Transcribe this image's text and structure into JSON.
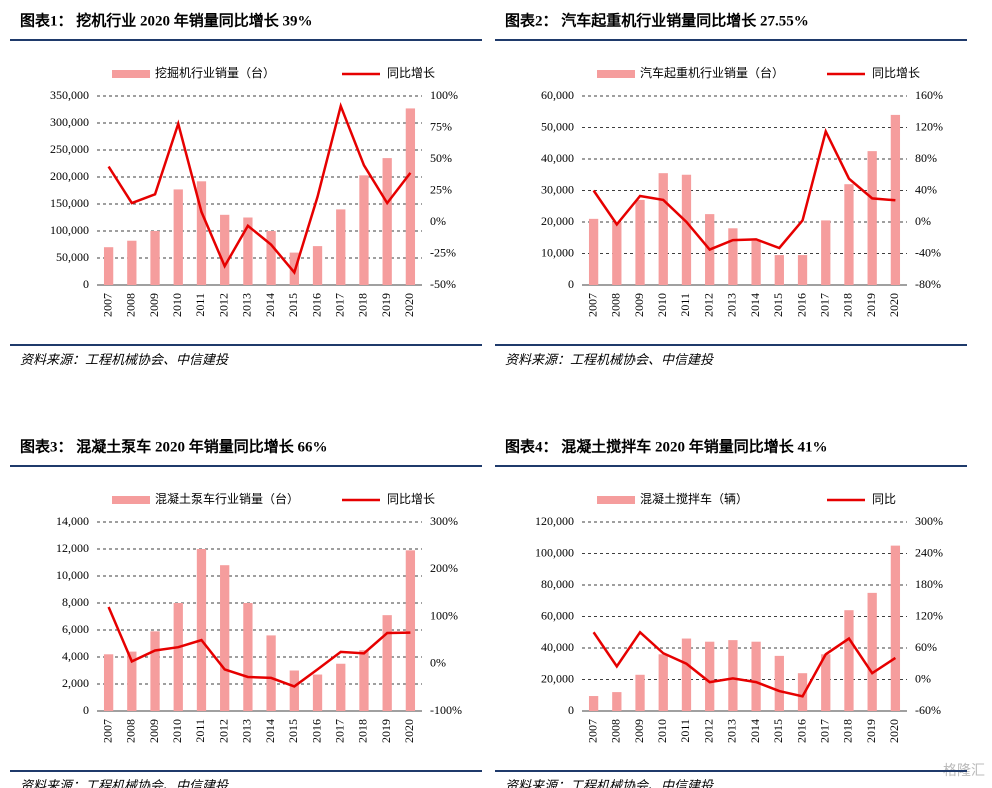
{
  "chart_data": [
    {
      "type": "bar_line",
      "title": "图表1：  挖机行业 2020 年销量同比增长 39%",
      "source": "资料来源：工程机械协会、中信建投",
      "categories": [
        "2007",
        "2008",
        "2009",
        "2010",
        "2011",
        "2012",
        "2013",
        "2014",
        "2015",
        "2016",
        "2017",
        "2018",
        "2019",
        "2020"
      ],
      "series": [
        {
          "name": "挖掘机行业销量（台）",
          "color": "#f59d9d",
          "values": [
            70000,
            82000,
            100000,
            177000,
            192000,
            130000,
            125000,
            100000,
            60000,
            72000,
            140000,
            203000,
            235000,
            327000
          ]
        },
        {
          "name": "同比增长",
          "color": "#e60000",
          "axis": "y2",
          "values": [
            44,
            15,
            22,
            78,
            8,
            -35,
            -3,
            -18,
            -40,
            20,
            92,
            45,
            15,
            39
          ]
        }
      ],
      "ylim": [
        0,
        350000
      ],
      "yticks": [
        0,
        {
          "value": 50000,
          "label": "50,000"
        },
        {
          "value": 100000,
          "label": "100,000"
        },
        {
          "value": 150000,
          "label": "150,000"
        },
        {
          "value": 200000,
          "label": "200,000"
        },
        {
          "value": 250000,
          "label": "250,000"
        },
        {
          "value": 300000,
          "label": "300,000"
        },
        {
          "value": 350000,
          "label": "350,000"
        }
      ],
      "y2lim": [
        -50,
        100
      ],
      "y2ticks": [
        {
          "value": -50,
          "label": "-50%"
        },
        {
          "value": -25,
          "label": "-25%"
        },
        {
          "value": 0,
          "label": "0%"
        },
        {
          "value": 25,
          "label": "25%"
        },
        {
          "value": 50,
          "label": "50%"
        },
        {
          "value": 75,
          "label": "75%"
        },
        {
          "value": 100,
          "label": "100%"
        }
      ],
      "grid": true
    },
    {
      "type": "bar_line",
      "title": "图表2：  汽车起重机行业销量同比增长 27.55%",
      "source": "资料来源：工程机械协会、中信建投",
      "categories": [
        "2007",
        "2008",
        "2009",
        "2010",
        "2011",
        "2012",
        "2013",
        "2014",
        "2015",
        "2016",
        "2017",
        "2018",
        "2019",
        "2020"
      ],
      "series": [
        {
          "name": "汽车起重机行业销量（台）",
          "color": "#f59d9d",
          "values": [
            21000,
            20000,
            27000,
            35500,
            35000,
            22500,
            18000,
            14000,
            9500,
            9500,
            20500,
            32000,
            42500,
            54000
          ]
        },
        {
          "name": "同比增长",
          "color": "#e60000",
          "axis": "y2",
          "values": [
            40,
            -3,
            33,
            28,
            0,
            -35,
            -23,
            -22,
            -33,
            2,
            115,
            55,
            30,
            27.55
          ]
        }
      ],
      "ylim": [
        0,
        60000
      ],
      "yticks": [
        0,
        {
          "value": 10000,
          "label": "10,000"
        },
        {
          "value": 20000,
          "label": "20,000"
        },
        {
          "value": 30000,
          "label": "30,000"
        },
        {
          "value": 40000,
          "label": "40,000"
        },
        {
          "value": 50000,
          "label": "50,000"
        },
        {
          "value": 60000,
          "label": "60,000"
        }
      ],
      "y2lim": [
        -80,
        160
      ],
      "y2ticks": [
        {
          "value": -80,
          "label": "-80%"
        },
        {
          "value": -40,
          "label": "-40%"
        },
        {
          "value": 0,
          "label": "0%"
        },
        {
          "value": 40,
          "label": "40%"
        },
        {
          "value": 80,
          "label": "80%"
        },
        {
          "value": 120,
          "label": "120%"
        },
        {
          "value": 160,
          "label": "160%"
        }
      ],
      "grid": true
    },
    {
      "type": "bar_line",
      "title": "图表3：  混凝土泵车 2020 年销量同比增长 66%",
      "source": "资料来源：工程机械协会、中信建投",
      "categories": [
        "2007",
        "2008",
        "2009",
        "2010",
        "2011",
        "2012",
        "2013",
        "2014",
        "2015",
        "2016",
        "2017",
        "2018",
        "2019",
        "2020"
      ],
      "series": [
        {
          "name": "混凝土泵车行业销量（台）",
          "color": "#f59d9d",
          "values": [
            4200,
            4400,
            5900,
            8000,
            12000,
            10800,
            8000,
            5600,
            3000,
            2700,
            3500,
            4500,
            7100,
            11900
          ]
        },
        {
          "name": "同比增长",
          "color": "#e60000",
          "axis": "y2",
          "values": [
            120,
            5,
            28,
            35,
            50,
            -12,
            -28,
            -30,
            -48,
            -12,
            25,
            22,
            65,
            66
          ]
        }
      ],
      "ylim": [
        0,
        14000
      ],
      "yticks": [
        0,
        {
          "value": 2000,
          "label": "2,000"
        },
        {
          "value": 4000,
          "label": "4,000"
        },
        {
          "value": 6000,
          "label": "6,000"
        },
        {
          "value": 8000,
          "label": "8,000"
        },
        {
          "value": 10000,
          "label": "10,000"
        },
        {
          "value": 12000,
          "label": "12,000"
        },
        {
          "value": 14000,
          "label": "14,000"
        }
      ],
      "y2lim": [
        -100,
        300
      ],
      "y2ticks": [
        {
          "value": -100,
          "label": "-100%"
        },
        {
          "value": 0,
          "label": "0%"
        },
        {
          "value": 100,
          "label": "100%"
        },
        {
          "value": 200,
          "label": "200%"
        },
        {
          "value": 300,
          "label": "300%"
        }
      ],
      "grid": true
    },
    {
      "type": "bar_line",
      "title": "图表4：  混凝土搅拌车 2020 年销量同比增长 41%",
      "source": "资料来源：工程机械协会、中信建投",
      "categories": [
        "2007",
        "2008",
        "2009",
        "2010",
        "2011",
        "2012",
        "2013",
        "2014",
        "2015",
        "2016",
        "2017",
        "2018",
        "2019",
        "2020"
      ],
      "series": [
        {
          "name": "混凝土搅拌车（辆）",
          "color": "#f59d9d",
          "values": [
            9500,
            12000,
            23000,
            36000,
            46000,
            44000,
            45000,
            44000,
            35000,
            24000,
            36000,
            64000,
            75000,
            105000
          ]
        },
        {
          "name": "同比",
          "color": "#e60000",
          "axis": "y2",
          "values": [
            90,
            25,
            90,
            50,
            30,
            -5,
            2,
            -5,
            -22,
            -32,
            48,
            78,
            12,
            41
          ]
        }
      ],
      "ylim": [
        0,
        120000
      ],
      "yticks": [
        0,
        {
          "value": 20000,
          "label": "20,000"
        },
        {
          "value": 40000,
          "label": "40,000"
        },
        {
          "value": 60000,
          "label": "60,000"
        },
        {
          "value": 80000,
          "label": "80,000"
        },
        {
          "value": 100000,
          "label": "100,000"
        },
        {
          "value": 120000,
          "label": "120,000"
        }
      ],
      "y2lim": [
        -60,
        300
      ],
      "y2ticks": [
        {
          "value": -60,
          "label": "-60%"
        },
        {
          "value": 0,
          "label": "0%"
        },
        {
          "value": 60,
          "label": "60%"
        },
        {
          "value": 120,
          "label": "120%"
        },
        {
          "value": 180,
          "label": "180%"
        },
        {
          "value": 240,
          "label": "240%"
        },
        {
          "value": 300,
          "label": "300%"
        }
      ],
      "grid": true
    }
  ],
  "watermark": "格隆汇"
}
